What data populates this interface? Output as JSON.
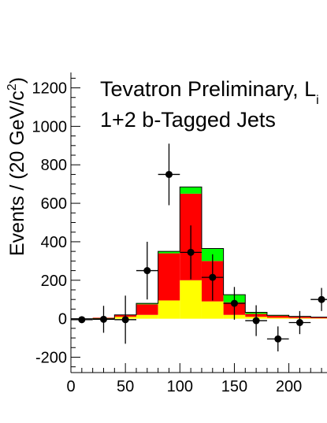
{
  "chart_data": {
    "type": "bar",
    "stacked": true,
    "annotation_line1": "Tevatron Preliminary, L",
    "annotation_line1_subscript": "i",
    "annotation_line2": "1+2 b-Tagged Jets",
    "ylabel_main": "Events / (20 GeV/c",
    "ylabel_sup": "2",
    "ylabel_close": ")",
    "xlim": [
      0,
      235
    ],
    "ylim": [
      -280,
      1280
    ],
    "x_ticks": [
      0,
      50,
      100,
      150,
      200
    ],
    "y_ticks": [
      -200,
      0,
      200,
      400,
      600,
      800,
      1000,
      1200
    ],
    "bin_edges": [
      0,
      20,
      40,
      60,
      80,
      100,
      120,
      140,
      160,
      180,
      200,
      220,
      240
    ],
    "series": [
      {
        "color": "#ffff00",
        "values": [
          0,
          5,
          10,
          20,
          95,
          200,
          90,
          20,
          10,
          5,
          3,
          2,
          1
        ]
      },
      {
        "color": "#ff0000",
        "values": [
          0,
          -3,
          10,
          55,
          245,
          450,
          210,
          65,
          15,
          10,
          7,
          5,
          3
        ]
      },
      {
        "color": "#00ff00",
        "values": [
          0,
          -2,
          0,
          5,
          10,
          35,
          65,
          40,
          8,
          3,
          2,
          1,
          1
        ]
      }
    ],
    "totals": [
      0,
      0,
      20,
      80,
      350,
      685,
      365,
      125,
      33,
      18,
      12,
      8,
      5
    ],
    "data_points": [
      {
        "x": 10,
        "y": -5,
        "err": 8
      },
      {
        "x": 30,
        "y": -3,
        "err": 70
      },
      {
        "x": 50,
        "y": -5,
        "err": 125
      },
      {
        "x": 70,
        "y": 250,
        "err": 150
      },
      {
        "x": 90,
        "y": 750,
        "err": 160
      },
      {
        "x": 110,
        "y": 345,
        "err": 140
      },
      {
        "x": 130,
        "y": 215,
        "err": 120
      },
      {
        "x": 150,
        "y": 80,
        "err": 85
      },
      {
        "x": 170,
        "y": -10,
        "err": 80
      },
      {
        "x": 190,
        "y": -105,
        "err": 65
      },
      {
        "x": 210,
        "y": -20,
        "err": 60
      },
      {
        "x": 230,
        "y": 100,
        "err": 60
      }
    ],
    "grid": false
  }
}
